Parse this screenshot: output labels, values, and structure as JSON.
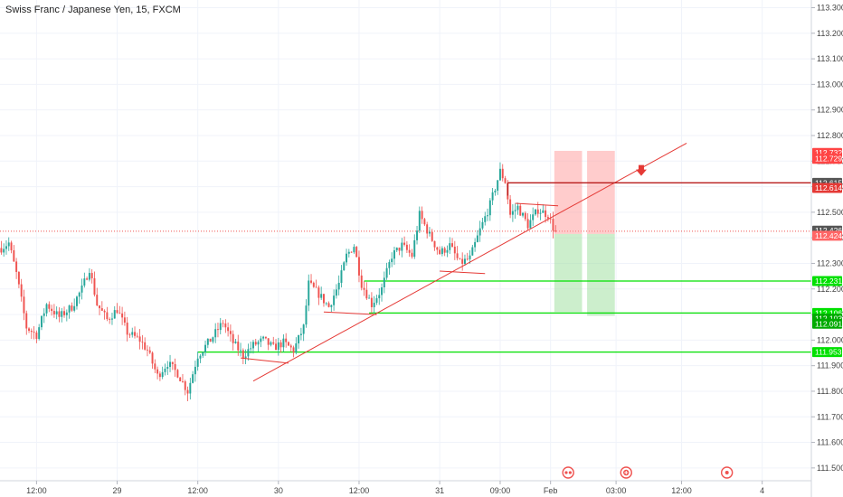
{
  "chart_data": {
    "type": "candlestick",
    "title": "Swiss Franc / Japanese Yen, 15, FXCM",
    "colors": {
      "up": "#26a69a",
      "down": "#ef5350",
      "trend": "#e53935",
      "support": "#00e000",
      "grid": "#f0f3fa"
    },
    "ylim": [
      111.45,
      113.33
    ],
    "y_ticks": [
      "113.300",
      "113.200",
      "113.100",
      "113.000",
      "112.900",
      "112.800",
      "112.700",
      "112.600",
      "112.500",
      "112.400",
      "112.300",
      "112.200",
      "112.100",
      "112.000",
      "111.900",
      "111.800",
      "111.700",
      "111.600",
      "111.500"
    ],
    "x_ticks": [
      "12:00",
      "29",
      "12:00",
      "30",
      "12:00",
      "31",
      "09:00",
      "Feb",
      "03:00",
      "12:00",
      "4"
    ],
    "x_tick_index": [
      14,
      46,
      78,
      110,
      142,
      174,
      198,
      218,
      244,
      270,
      302
    ],
    "total_bars": 322,
    "price_tags": [
      {
        "label": "112.732",
        "value": 112.732,
        "bg": "#ff4444",
        "fg": "#ffffff"
      },
      {
        "label": "112.729",
        "value": 112.709,
        "bg": "#ff4444",
        "fg": "#ffffff"
      },
      {
        "label": "112.615",
        "value": 112.615,
        "bg": "#555555",
        "fg": "#ffffff"
      },
      {
        "label": "112.614",
        "value": 112.595,
        "bg": "#e53935",
        "fg": "#ffffff"
      },
      {
        "label": "112.426",
        "value": 112.428,
        "bg": "#555555",
        "fg": "#ffffff"
      },
      {
        "label": "112.424",
        "value": 112.408,
        "bg": "#ff6666",
        "fg": "#ffffff"
      },
      {
        "label": "112.231",
        "value": 112.231,
        "bg": "#00e000",
        "fg": "#ffffff"
      },
      {
        "label": "112.106",
        "value": 112.106,
        "bg": "#00e000",
        "fg": "#ffffff"
      },
      {
        "label": "112.103",
        "value": 112.084,
        "bg": "#00aa00",
        "fg": "#ffffff"
      },
      {
        "label": "112.091",
        "value": 112.064,
        "bg": "#00aa00",
        "fg": "#ffffff"
      },
      {
        "label": "111.953",
        "value": 111.953,
        "bg": "#00e000",
        "fg": "#ffffff"
      }
    ],
    "support_lines": [
      {
        "from_bar": 144,
        "value": 112.231
      },
      {
        "from_bar": 146,
        "value": 112.106
      },
      {
        "from_bar": 78,
        "value": 111.953
      }
    ],
    "resistance_line": {
      "from_bar": 201,
      "value": 112.615
    },
    "trendline": {
      "x1": 100,
      "y1": 111.84,
      "x2": 272,
      "y2": 112.77
    },
    "short_lines": [
      {
        "x1": 95,
        "y1": 111.93,
        "x2": 114,
        "y2": 111.91
      },
      {
        "x1": 128,
        "y1": 112.11,
        "x2": 149,
        "y2": 112.1
      },
      {
        "x1": 174,
        "y1": 112.27,
        "x2": 192,
        "y2": 112.26
      },
      {
        "x1": 204,
        "y1": 112.535,
        "x2": 221,
        "y2": 112.525
      }
    ],
    "position_boxes": [
      {
        "x1": 220,
        "x2": 230,
        "top": 112.74,
        "entry": 112.415,
        "bottom": 112.11
      },
      {
        "x1": 233,
        "x2": 243,
        "top": 112.74,
        "entry": 112.415,
        "bottom": 112.095
      }
    ],
    "arrow": {
      "bar": 254,
      "value": 112.66
    },
    "close_line": 112.426,
    "keypoints": [
      [
        0,
        112.36
      ],
      [
        3,
        112.38
      ],
      [
        6,
        112.26
      ],
      [
        10,
        112.05
      ],
      [
        14,
        112.02
      ],
      [
        18,
        112.14
      ],
      [
        23,
        112.09
      ],
      [
        28,
        112.13
      ],
      [
        32,
        112.2
      ],
      [
        35,
        112.28
      ],
      [
        38,
        112.14
      ],
      [
        42,
        112.08
      ],
      [
        46,
        112.12
      ],
      [
        50,
        112.03
      ],
      [
        55,
        112.0
      ],
      [
        58,
        111.96
      ],
      [
        62,
        111.86
      ],
      [
        66,
        111.91
      ],
      [
        70,
        111.87
      ],
      [
        74,
        111.8
      ],
      [
        78,
        111.94
      ],
      [
        83,
        112.0
      ],
      [
        88,
        112.07
      ],
      [
        92,
        111.99
      ],
      [
        96,
        111.94
      ],
      [
        100,
        111.98
      ],
      [
        104,
        112.0
      ],
      [
        108,
        111.97
      ],
      [
        112,
        111.99
      ],
      [
        116,
        111.96
      ],
      [
        120,
        112.05
      ],
      [
        122,
        112.22
      ],
      [
        126,
        112.18
      ],
      [
        130,
        112.13
      ],
      [
        134,
        112.22
      ],
      [
        137,
        112.33
      ],
      [
        140,
        112.37
      ],
      [
        143,
        112.22
      ],
      [
        147,
        112.14
      ],
      [
        151,
        112.2
      ],
      [
        155,
        112.33
      ],
      [
        159,
        112.37
      ],
      [
        163,
        112.33
      ],
      [
        166,
        112.49
      ],
      [
        170,
        112.41
      ],
      [
        174,
        112.34
      ],
      [
        178,
        112.37
      ],
      [
        182,
        112.3
      ],
      [
        186,
        112.32
      ],
      [
        190,
        112.43
      ],
      [
        194,
        112.53
      ],
      [
        198,
        112.66
      ],
      [
        200,
        112.62
      ],
      [
        202,
        112.49
      ],
      [
        205,
        112.52
      ],
      [
        209,
        112.45
      ],
      [
        213,
        112.51
      ],
      [
        217,
        112.49
      ],
      [
        219,
        112.44
      ],
      [
        220,
        112.426
      ]
    ]
  },
  "bottom_markers": [
    {
      "icon": "double-dot-icon",
      "bar": 225
    },
    {
      "icon": "plus-circle-icon",
      "bar": 248
    },
    {
      "icon": "dot-circle-icon",
      "bar": 288
    }
  ]
}
